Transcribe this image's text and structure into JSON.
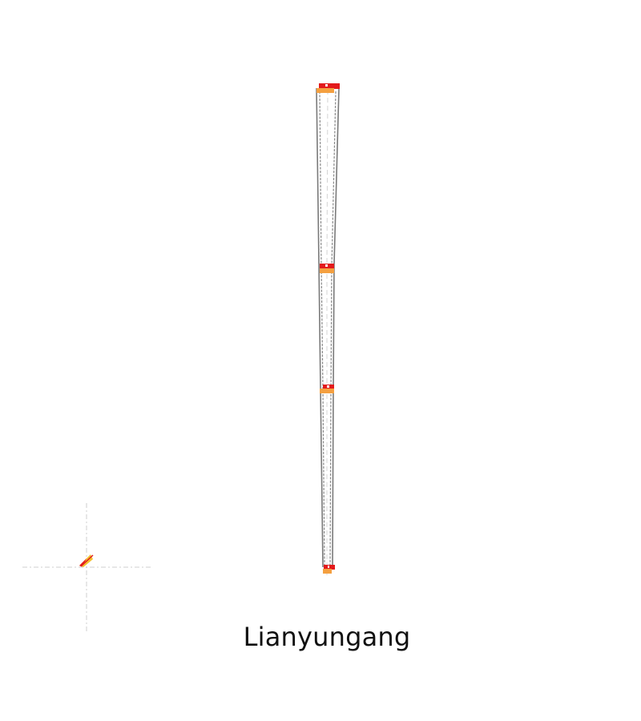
{
  "city": {
    "name": "Lianyungang"
  },
  "colors": {
    "background": "#ffffff",
    "road_outline": "#7a7a7a",
    "road_centerline": "#d4d4d4",
    "station_red": "#e31a1c",
    "station_orange": "#f4a040",
    "compass_yellow": "#f2c230",
    "crosshair": "#cfcfcf",
    "label": "#111111"
  },
  "map": {
    "features": [
      {
        "name": "corridor-north-south",
        "kind": "road"
      },
      {
        "name": "station-north",
        "kind": "station"
      },
      {
        "name": "station-mid-upper",
        "kind": "station"
      },
      {
        "name": "station-mid-lower",
        "kind": "station"
      },
      {
        "name": "station-south",
        "kind": "station"
      }
    ],
    "compass_icon": "north-arrow-icon"
  }
}
